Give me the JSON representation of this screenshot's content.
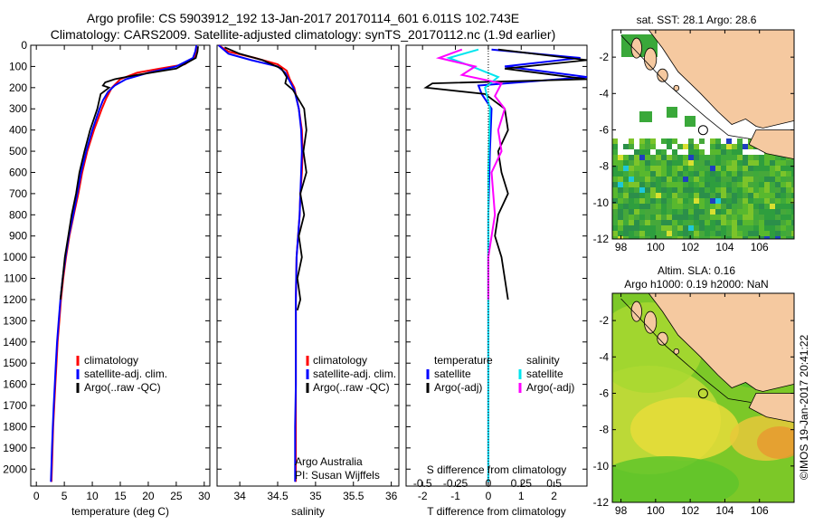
{
  "header": {
    "line1": "Argo profile: CS 5903912_192 13-Jan-2017 20170114_601 6.011S 102.743E",
    "line2": "Climatology: CARS2009. Satellite-adjusted climatology: synTS_20170112.nc (1.9d earlier)"
  },
  "footer_stamp": "©IMOS 19-Jan-2017 20:41:22",
  "colors": {
    "climatology": "#ff0000",
    "satellite": "#0000ff",
    "argo": "#000000",
    "salinity_satellite": "#00e5ee",
    "salinity_argo": "#ff00ff",
    "land": "#f5c9a0",
    "grid_line": "#000000"
  },
  "chart_data": [
    {
      "id": "temperature",
      "type": "line",
      "xlabel": "temperature (deg C)",
      "ylabel": "",
      "xlim": [
        -1,
        31
      ],
      "ylim": [
        2080,
        0
      ],
      "xticks": [
        0,
        5,
        10,
        15,
        20,
        25,
        30
      ],
      "xtick_labels": [
        "0",
        "5",
        "10",
        "15",
        "20",
        "25",
        "30"
      ],
      "yticks": [
        0,
        100,
        200,
        300,
        400,
        500,
        600,
        700,
        800,
        900,
        1000,
        1100,
        1200,
        1300,
        1400,
        1500,
        1600,
        1700,
        1800,
        1900,
        2000
      ],
      "ytick_labels": [
        "0",
        "100",
        "200",
        "300",
        "400",
        "500",
        "600",
        "700",
        "800",
        "900",
        "1000",
        "1100",
        "1200",
        "1300",
        "1400",
        "1500",
        "1600",
        "1700",
        "1800",
        "1900",
        "2000"
      ],
      "legend_position": "center",
      "legend": [
        "climatology",
        "satellite-adj. clim.",
        "Argo(..raw -QC)"
      ],
      "series": [
        {
          "key": "climatology",
          "color": "#ff0000",
          "x": [
            28.6,
            28.5,
            28.2,
            26.5,
            22,
            18,
            15,
            13.5,
            12.5,
            11.7,
            10.3,
            9.1,
            8.2,
            7.5,
            6.7,
            5.9,
            5.3,
            4.8,
            4.4,
            4.1,
            3.8,
            3.6,
            3.4,
            3.2,
            3.0,
            2.9,
            2.7
          ],
          "y": [
            0,
            30,
            60,
            90,
            110,
            130,
            160,
            200,
            250,
            300,
            400,
            500,
            600,
            700,
            800,
            900,
            1000,
            1100,
            1200,
            1300,
            1400,
            1500,
            1600,
            1700,
            1800,
            1900,
            2060
          ]
        },
        {
          "key": "satellite",
          "color": "#0000ff",
          "x": [
            28.6,
            28.4,
            28.0,
            25,
            20,
            16,
            14,
            12.8,
            11.9,
            11.3,
            10.0,
            8.9,
            8.0,
            7.3,
            6.6,
            5.8,
            5.2,
            4.7,
            4.3,
            4.0,
            3.7,
            3.5,
            3.3,
            3.1,
            2.95,
            2.8,
            2.6
          ],
          "y": [
            0,
            30,
            60,
            100,
            130,
            160,
            190,
            220,
            260,
            300,
            400,
            500,
            600,
            700,
            800,
            900,
            1000,
            1100,
            1200,
            1300,
            1400,
            1500,
            1600,
            1700,
            1800,
            1900,
            2060
          ]
        },
        {
          "key": "argo",
          "color": "#000000",
          "x": [
            28.9,
            28.8,
            28.5,
            25,
            18,
            14,
            12.3,
            11.9,
            13,
            11.5,
            10.9,
            9.6,
            8.6,
            7.7,
            7.1,
            6.3,
            5.7,
            5.1,
            4.7,
            4.3
          ],
          "y": [
            5,
            30,
            60,
            110,
            140,
            160,
            175,
            190,
            200,
            230,
            300,
            400,
            500,
            600,
            700,
            800,
            900,
            1000,
            1100,
            1200
          ]
        }
      ]
    },
    {
      "id": "salinity",
      "type": "line",
      "xlabel": "salinity",
      "ylabel": "",
      "xlim": [
        33.7,
        36.1
      ],
      "ylim": [
        2080,
        0
      ],
      "xticks": [
        34,
        34.5,
        35,
        35.5,
        36
      ],
      "xtick_labels": [
        "34",
        "34.5",
        "35",
        "35.5",
        "36"
      ],
      "legend_position": "center",
      "legend": [
        "climatology",
        "satellite-adj. clim.",
        "Argo(..raw -QC)"
      ],
      "annotation": [
        "Argo Australia",
        "PI: Susan Wijffels"
      ],
      "series": [
        {
          "key": "climatology",
          "color": "#ff0000",
          "x": [
            33.72,
            33.85,
            34.2,
            34.5,
            34.62,
            34.66,
            34.72,
            34.78,
            34.82,
            34.83,
            34.82,
            34.8,
            34.79,
            34.77,
            34.75,
            34.74,
            34.74,
            34.74,
            34.74,
            34.74
          ],
          "y": [
            0,
            30,
            60,
            90,
            120,
            160,
            200,
            300,
            400,
            500,
            600,
            700,
            800,
            900,
            1000,
            1200,
            1400,
            1600,
            1800,
            2060
          ]
        },
        {
          "key": "satellite",
          "color": "#0000ff",
          "x": [
            33.72,
            33.85,
            34.15,
            34.5,
            34.6,
            34.66,
            34.72,
            34.78,
            34.81,
            34.82,
            34.81,
            34.8,
            34.79,
            34.77,
            34.75,
            34.74,
            34.74,
            34.74,
            34.73,
            34.73
          ],
          "y": [
            0,
            40,
            70,
            100,
            130,
            170,
            210,
            300,
            400,
            500,
            600,
            700,
            800,
            900,
            1000,
            1200,
            1400,
            1600,
            1800,
            2060
          ]
        },
        {
          "key": "argo",
          "color": "#000000",
          "x": [
            33.8,
            34.0,
            34.3,
            34.55,
            34.62,
            34.6,
            34.7,
            34.85,
            34.88,
            34.84,
            34.88,
            34.8,
            34.85,
            34.78,
            34.82,
            34.76,
            34.8,
            34.76
          ],
          "y": [
            10,
            40,
            70,
            110,
            150,
            180,
            210,
            300,
            400,
            500,
            600,
            700,
            800,
            900,
            1000,
            1100,
            1200,
            1250
          ]
        }
      ]
    },
    {
      "id": "difference",
      "type": "line",
      "xlabel": "T difference from climatology",
      "xlabel_top": "S difference from climatology",
      "xlim": [
        -2.5,
        3
      ],
      "ylim": [
        2080,
        0
      ],
      "xticks": [
        -2,
        -1,
        0,
        1,
        2
      ],
      "xtick_labels": [
        "-2",
        "-1",
        "0",
        "1",
        "2"
      ],
      "xticks_top": [
        -2,
        -1,
        0,
        1,
        2
      ],
      "xtick_labels_top": [
        "-0.5",
        "-0.25",
        "0",
        "0.25",
        "0.5"
      ],
      "legend_position": "center",
      "legend_temperature": {
        "title": "temperature",
        "items": [
          "satellite",
          "Argo(-adj)"
        ]
      },
      "legend_salinity": {
        "title": "salinity",
        "items": [
          "satellite",
          "Argo(-adj)"
        ]
      },
      "series": [
        {
          "key": "t_satellite",
          "color": "#0000ff",
          "x": [
            0.1,
            2.8,
            0.5,
            3.0,
            -0.3,
            -0.2,
            0.1,
            0.05,
            0.0,
            0.0,
            0.0,
            0.0,
            0.0,
            0.0
          ],
          "y": [
            20,
            60,
            100,
            150,
            190,
            230,
            300,
            500,
            800,
            1000,
            1200,
            1500,
            1800,
            2060
          ]
        },
        {
          "key": "t_argo",
          "color": "#000000",
          "x": [
            0.3,
            3.0,
            0.5,
            3.0,
            -1.7,
            -1.9,
            -0.1,
            0.5,
            0.6,
            0.3,
            0.4,
            0.6,
            0.3,
            0.2,
            0.4,
            0.6
          ],
          "y": [
            20,
            70,
            110,
            160,
            180,
            200,
            230,
            300,
            400,
            500,
            600,
            700,
            800,
            900,
            1000,
            1200
          ]
        },
        {
          "key": "s_satellite",
          "color": "#00e5ee",
          "x": [
            -0.3,
            -1.2,
            -0.5,
            0.3,
            -0.1,
            0.05,
            0.0,
            0.0,
            0.0,
            0.0
          ],
          "y": [
            20,
            60,
            100,
            150,
            200,
            300,
            600,
            1000,
            1500,
            2060
          ]
        },
        {
          "key": "s_argo",
          "color": "#ff00ff",
          "x": [
            -0.8,
            -1.5,
            -0.4,
            -0.8,
            0.4,
            0.2,
            0.5,
            0.3,
            0.4,
            0.1,
            0.2,
            0.0,
            0.0
          ],
          "y": [
            20,
            60,
            100,
            140,
            180,
            240,
            300,
            400,
            500,
            600,
            800,
            1000,
            1200
          ]
        }
      ]
    },
    {
      "id": "sst_map",
      "type": "heatmap",
      "title": "sat. SST: 28.1 Argo: 28.6",
      "xlim": [
        97.5,
        108
      ],
      "ylim": [
        -12,
        -0.5
      ],
      "xticks": [
        98,
        100,
        102,
        104,
        106
      ],
      "xtick_labels": [
        "98",
        "100",
        "102",
        "104",
        "106"
      ],
      "yticks": [
        -2,
        -4,
        -6,
        -8,
        -10,
        -12
      ],
      "ytick_labels": [
        "-2",
        "-4",
        "-6",
        "-8",
        "-10",
        "-12"
      ],
      "marker": {
        "lon": 102.743,
        "lat": -6.011
      }
    },
    {
      "id": "sla_map",
      "type": "heatmap",
      "title_lines": [
        "Altim. SLA: 0.16",
        "Argo h1000: 0.19 h2000: NaN"
      ],
      "xlim": [
        97.5,
        108
      ],
      "ylim": [
        -12,
        -0.5
      ],
      "xticks": [
        98,
        100,
        102,
        104,
        106
      ],
      "xtick_labels": [
        "98",
        "100",
        "102",
        "104",
        "106"
      ],
      "yticks": [
        -2,
        -4,
        -6,
        -8,
        -10,
        -12
      ],
      "ytick_labels": [
        "-2",
        "-4",
        "-6",
        "-8",
        "-10",
        "-12"
      ],
      "marker": {
        "lon": 102.743,
        "lat": -6.011
      }
    }
  ]
}
